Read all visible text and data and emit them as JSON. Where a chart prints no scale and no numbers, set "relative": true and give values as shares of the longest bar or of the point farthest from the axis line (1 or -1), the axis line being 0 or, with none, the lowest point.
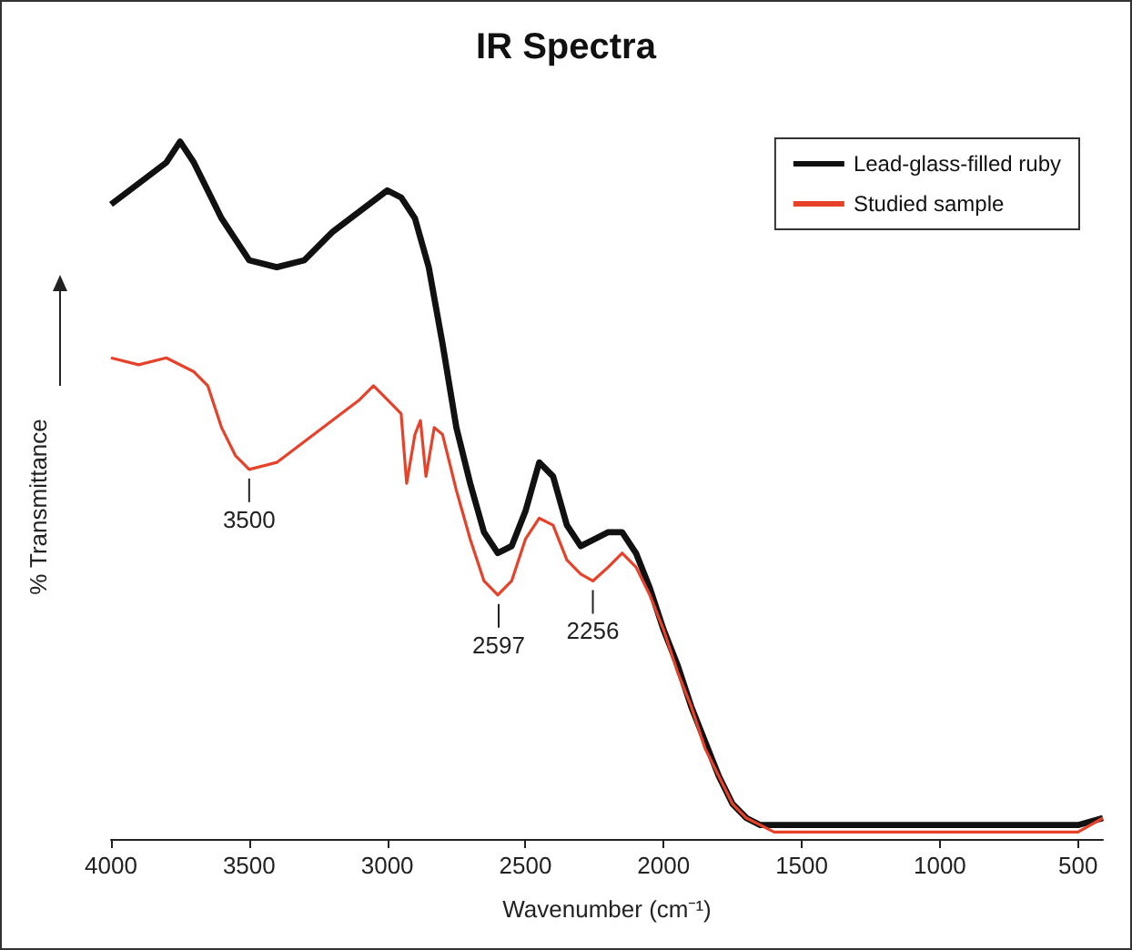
{
  "chart_data": {
    "type": "line",
    "title": "IR Spectra",
    "xlabel": "Wavenumber (cm⁻¹)",
    "ylabel": "% Transmittance",
    "relative": true,
    "grid": false,
    "legend": "top right",
    "marker": "none",
    "line_style": "solid",
    "xlim": [
      4000,
      410
    ],
    "xticks": [
      4000,
      3500,
      3000,
      2500,
      2000,
      1500,
      1000,
      500
    ],
    "x": [
      4000,
      3900,
      3800,
      3750,
      3700,
      3650,
      3600,
      3500,
      3400,
      3300,
      3200,
      3100,
      3000,
      2950,
      2900,
      2850,
      2800,
      2750,
      2700,
      2650,
      2600,
      2550,
      2500,
      2450,
      2400,
      2350,
      2300,
      2250,
      2200,
      2150,
      2100,
      2050,
      2000,
      1950,
      1900,
      1850,
      1800,
      1750,
      1700,
      1650,
      1600,
      1000,
      500,
      410
    ],
    "series": [
      {
        "name": "Lead-glass-filled ruby",
        "color": "#111111",
        "values": [
          0.91,
          0.94,
          0.97,
          1,
          0.97,
          0.93,
          0.89,
          0.83,
          0.82,
          0.83,
          0.87,
          0.9,
          0.93,
          0.92,
          0.89,
          0.82,
          0.71,
          0.59,
          0.51,
          0.44,
          0.41,
          0.42,
          0.47,
          0.54,
          0.52,
          0.45,
          0.42,
          0.43,
          0.44,
          0.44,
          0.41,
          0.36,
          0.3,
          0.25,
          0.19,
          0.14,
          0.09,
          0.05,
          0.03,
          0.02,
          0.02,
          0.02,
          0.02,
          0.03
        ]
      },
      {
        "name": "Studied sample",
        "color": "#e8412a",
        "x": [
          4000,
          3900,
          3800,
          3700,
          3650,
          3600,
          3550,
          3500,
          3400,
          3300,
          3200,
          3100,
          3050,
          3000,
          2950,
          2930,
          2900,
          2880,
          2860,
          2830,
          2800,
          2750,
          2700,
          2650,
          2600,
          2550,
          2500,
          2450,
          2400,
          2350,
          2300,
          2256,
          2200,
          2150,
          2100,
          2050,
          2000,
          1950,
          1900,
          1850,
          1800,
          1750,
          1700,
          1650,
          1600,
          1000,
          500,
          410
        ],
        "values": [
          0.69,
          0.68,
          0.69,
          0.67,
          0.65,
          0.59,
          0.55,
          0.53,
          0.54,
          0.57,
          0.6,
          0.63,
          0.65,
          0.63,
          0.61,
          0.51,
          0.58,
          0.6,
          0.52,
          0.59,
          0.58,
          0.5,
          0.43,
          0.37,
          0.35,
          0.37,
          0.43,
          0.46,
          0.45,
          0.4,
          0.38,
          0.37,
          0.39,
          0.41,
          0.39,
          0.35,
          0.3,
          0.24,
          0.19,
          0.13,
          0.09,
          0.05,
          0.03,
          0.02,
          0.01,
          0.01,
          0.01,
          0.03
        ]
      }
    ],
    "annotations": [
      {
        "text": "3500",
        "x": 3500,
        "y": 0.53
      },
      {
        "text": "2597",
        "x": 2597,
        "y": 0.35
      },
      {
        "text": "2256",
        "x": 2256,
        "y": 0.37
      }
    ]
  }
}
